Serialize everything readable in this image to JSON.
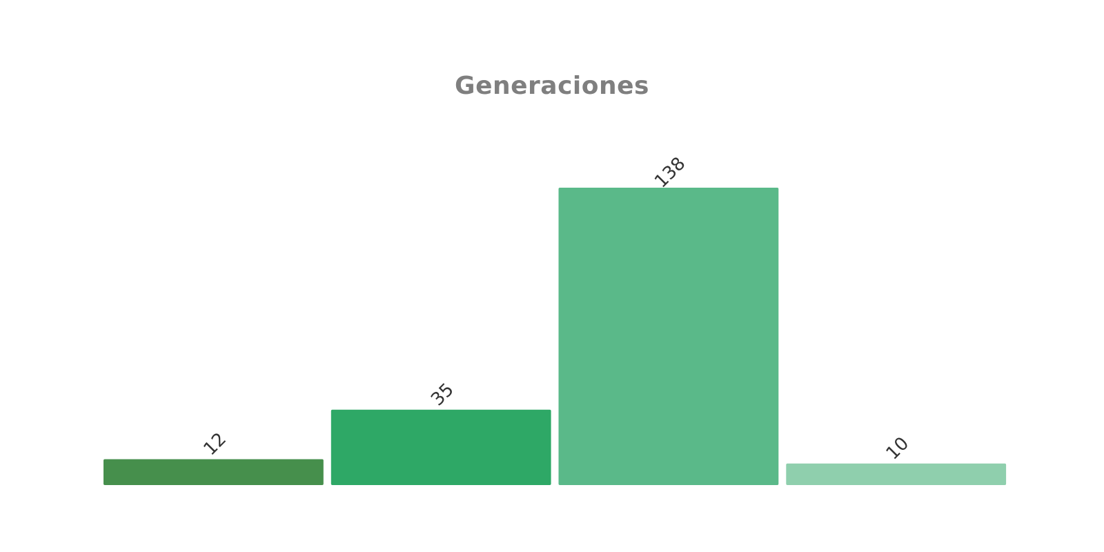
{
  "chart_data": {
    "type": "bar",
    "title": "Generaciones",
    "categories": [
      "",
      "",
      "",
      ""
    ],
    "values": [
      12,
      35,
      138,
      10
    ],
    "colors": [
      "#468f4c",
      "#2ea866",
      "#5ab989",
      "#8fcfad"
    ],
    "data_labels": [
      "12",
      "35",
      "138",
      "10"
    ],
    "ylim": [
      0,
      138
    ],
    "grid": false,
    "legend": "none"
  }
}
